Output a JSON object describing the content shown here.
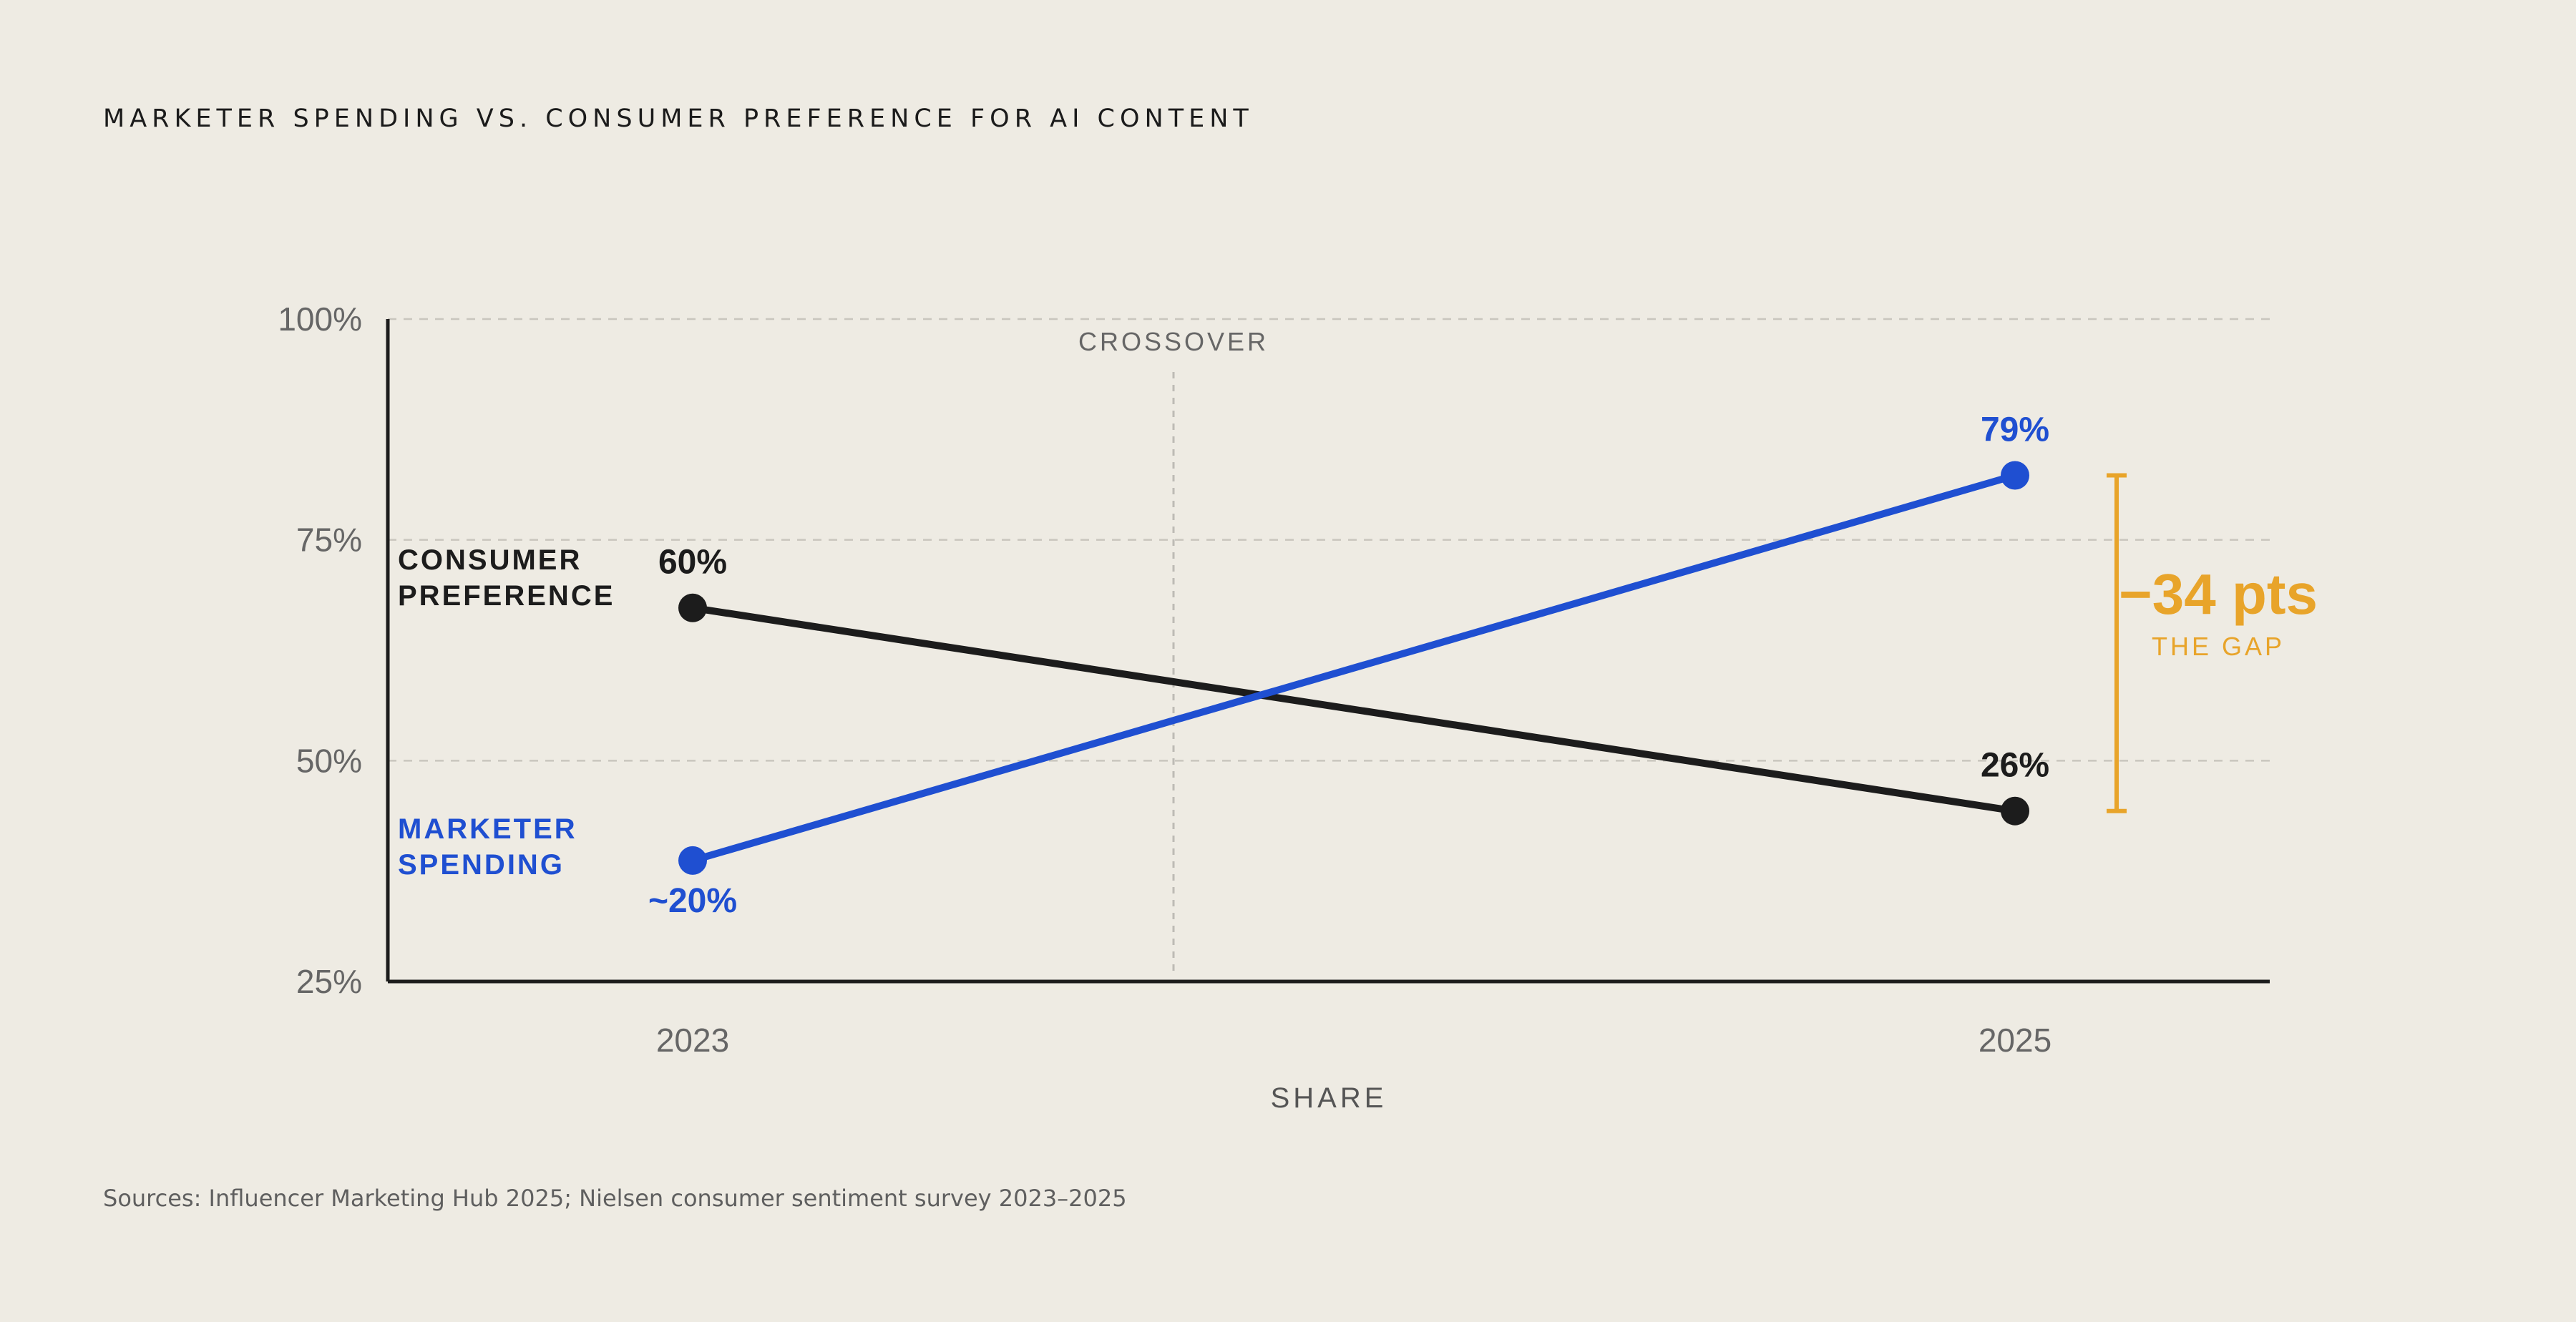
{
  "title": "MARKETER SPENDING VS. CONSUMER PREFERENCE FOR AI CONTENT",
  "source": "Sources: Influencer Marketing Hub 2025; Nielsen consumer sentiment survey 2023–2025",
  "chart_data": {
    "type": "line",
    "title": "MARKETER SPENDING VS. CONSUMER PREFERENCE FOR AI CONTENT",
    "xlabel": "SHARE",
    "ylabel": "",
    "categories": [
      "2023",
      "2025"
    ],
    "y_ticks": [
      {
        "value": 100,
        "label": "100%"
      },
      {
        "value": 75,
        "label": "75%"
      },
      {
        "value": 50,
        "label": "50%"
      },
      {
        "value": 25,
        "label": "25%"
      }
    ],
    "ylim": [
      25,
      100
    ],
    "grid": true,
    "series": [
      {
        "name": "CONSUMER PREFERENCE",
        "name_lines": [
          "CONSUMER",
          "PREFERENCE"
        ],
        "color": "#1c1c1c",
        "values": [
          60,
          26
        ],
        "plotted_values": [
          67.3,
          44.3
        ],
        "value_labels": [
          "60%",
          "26%"
        ]
      },
      {
        "name": "MARKETER SPENDING",
        "name_lines": [
          "MARKETER",
          "SPENDING"
        ],
        "color": "#1f4fd1",
        "values": [
          20,
          79
        ],
        "plotted_values": [
          38.7,
          82.3
        ],
        "value_labels": [
          "~20%",
          "79%"
        ]
      }
    ],
    "annotations": {
      "crossover_label": "CROSSOVER",
      "gap_value": "−34 pts",
      "gap_label": "THE GAP",
      "gap_color": "#E8A42A"
    }
  }
}
